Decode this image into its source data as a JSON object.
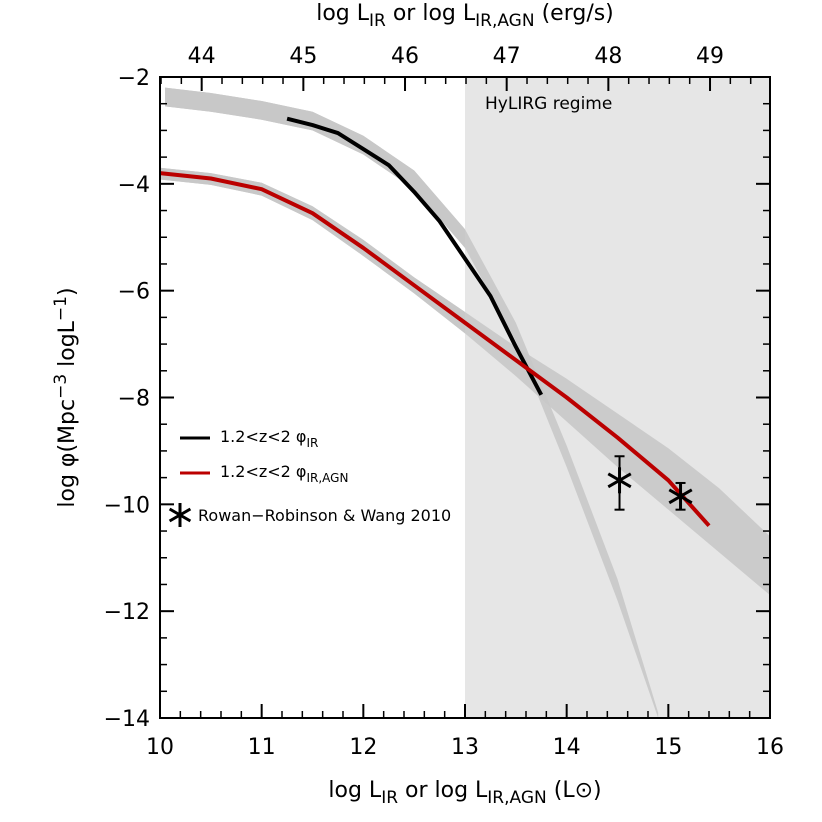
{
  "chart_data": {
    "type": "line",
    "xlabel": "log L",
    "xlabel_parts": {
      "sub1": "IR",
      "mid": " or log L",
      "sub2": "IR,AGN",
      "unit": " (L⊙)"
    },
    "xlabel_top": "log L",
    "xlabel_top_parts": {
      "sub1": "IR",
      "mid": " or log L",
      "sub2": "IR,AGN",
      "unit": " (erg/s)"
    },
    "ylabel": "log φ(Mpc",
    "ylabel_parts": {
      "sup1": "−3",
      "mid": " logL",
      "sup2": "−1",
      "end": ")"
    },
    "xlim": [
      10,
      16
    ],
    "ylim": [
      -14,
      -2
    ],
    "x_ticks": [
      "10",
      "11",
      "12",
      "13",
      "14",
      "15",
      "16"
    ],
    "y_ticks": [
      "−2",
      "−4",
      "−6",
      "−8",
      "−10",
      "−12",
      "−14"
    ],
    "x_ticks_top": [
      "44",
      "45",
      "46",
      "47",
      "48",
      "49"
    ],
    "top_axis_offset": 33.59,
    "region": {
      "label": "HyLIRG regime",
      "x_start": 13,
      "x_end": 16,
      "color": "#e6e6e6"
    },
    "series": [
      {
        "name": "1.2<z<2 φIR",
        "legend_main": "1.2<z<2 φ",
        "legend_sub": "IR",
        "color": "#000000",
        "x": [
          11.25,
          11.5,
          11.75,
          12.0,
          12.25,
          12.5,
          12.75,
          13.0,
          13.25,
          13.5,
          13.75
        ],
        "y": [
          -2.78,
          -2.9,
          -3.05,
          -3.35,
          -3.65,
          -4.15,
          -4.7,
          -5.4,
          -6.1,
          -7.05,
          -7.95
        ],
        "band": {
          "x": [
            10.05,
            10.5,
            11.0,
            11.5,
            12.0,
            12.5,
            13.0,
            13.5,
            14.0,
            14.5,
            14.9
          ],
          "upper": [
            -2.2,
            -2.3,
            -2.45,
            -2.65,
            -3.1,
            -3.75,
            -4.85,
            -6.6,
            -8.9,
            -11.4,
            -13.9
          ],
          "lower": [
            -2.55,
            -2.65,
            -2.8,
            -3.0,
            -3.45,
            -4.1,
            -5.2,
            -6.95,
            -9.3,
            -11.8,
            -14.3
          ],
          "color": "#c8c8c8"
        }
      },
      {
        "name": "1.2<z<2 φIR,AGN",
        "legend_main": "1.2<z<2 φ",
        "legend_sub": "IR,AGN",
        "color": "#bb0000",
        "x": [
          10.0,
          10.5,
          11.0,
          11.5,
          12.0,
          12.5,
          13.0,
          13.5,
          14.0,
          14.5,
          15.0,
          15.4
        ],
        "y": [
          -3.8,
          -3.9,
          -4.1,
          -4.55,
          -5.2,
          -5.9,
          -6.6,
          -7.3,
          -8.0,
          -8.75,
          -9.55,
          -10.4
        ],
        "band": {
          "x": [
            10.0,
            10.5,
            11.0,
            11.5,
            12.0,
            12.5,
            13.0,
            13.5,
            14.0,
            14.5,
            15.0,
            15.5,
            16.0
          ],
          "upper": [
            -3.7,
            -3.8,
            -3.98,
            -4.42,
            -5.05,
            -5.75,
            -6.4,
            -7.05,
            -7.65,
            -8.3,
            -8.95,
            -9.7,
            -10.6
          ],
          "lower": [
            -3.92,
            -4.02,
            -4.22,
            -4.68,
            -5.35,
            -6.05,
            -6.8,
            -7.6,
            -8.45,
            -9.3,
            -10.1,
            -10.9,
            -11.7
          ],
          "color": "#c8c8c8"
        }
      }
    ],
    "points": {
      "name": "Rowan−Robinson & Wang 2010",
      "x": [
        14.52,
        15.12
      ],
      "y": [
        -9.55,
        -9.85
      ],
      "yerr_low": [
        0.55,
        0.25
      ],
      "yerr_high": [
        0.45,
        0.25
      ]
    },
    "legend_position": "lower-left",
    "grid": false
  }
}
